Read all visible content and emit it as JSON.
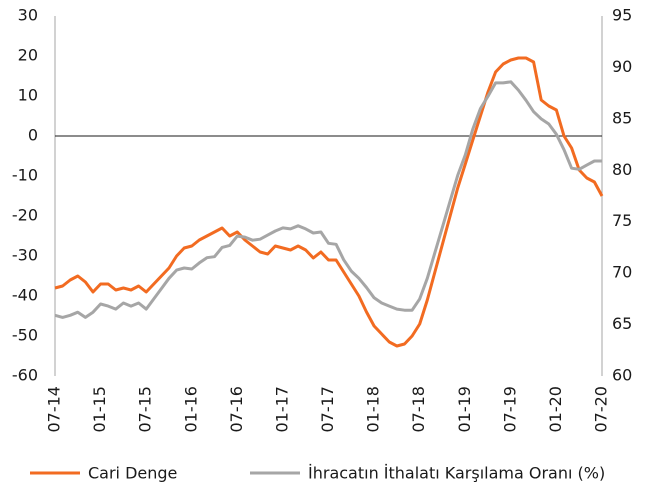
{
  "chart_data": {
    "type": "line",
    "categories": [
      "07-14",
      null,
      null,
      null,
      null,
      null,
      "01-15",
      null,
      null,
      null,
      null,
      null,
      "07-15",
      null,
      null,
      null,
      null,
      null,
      "01-16",
      null,
      null,
      null,
      null,
      null,
      "07-16",
      null,
      null,
      null,
      null,
      null,
      "01-17",
      null,
      null,
      null,
      null,
      null,
      "07-17",
      null,
      null,
      null,
      null,
      null,
      "01-18",
      null,
      null,
      null,
      null,
      null,
      "07-18",
      null,
      null,
      null,
      null,
      null,
      "01-19",
      null,
      null,
      null,
      null,
      null,
      "07-19",
      null,
      null,
      null,
      null,
      null,
      "01-20",
      null,
      null,
      null,
      null,
      null,
      "07-20"
    ],
    "series": [
      {
        "name": "Cari Denge",
        "color": "#f26b21",
        "values": [
          -38,
          -37.5,
          -36,
          -35,
          -36.5,
          -39,
          -37,
          -37,
          -38.5,
          -38,
          -38.5,
          -37.5,
          -39,
          -37,
          -35,
          -33,
          -30,
          -28,
          -27.5,
          -26,
          -25,
          -24,
          -23,
          -25,
          -24,
          -26,
          -27.5,
          -29,
          -29.5,
          -27.5,
          -28,
          -28.5,
          -27.5,
          -28.5,
          -30.5,
          -29,
          -31,
          -31,
          -34,
          -37,
          -40,
          -44,
          -47.5,
          -49.5,
          -51.5,
          -52.5,
          -52,
          -50,
          -47,
          -41,
          -34,
          -27,
          -20,
          -13,
          -7,
          -1,
          5,
          11,
          16,
          18,
          19,
          19.5,
          19.5,
          18.5,
          9,
          7.5,
          6.5,
          0,
          -3,
          -8.5,
          -10.5,
          -11.5,
          -15
        ]
      },
      {
        "name": "İhracatın İthalatı Karşılama Oranı (%)",
        "color": "#a6a6a6",
        "axis": "y2",
        "values": [
          65.9,
          65.7,
          65.9,
          66.2,
          65.7,
          66.2,
          67,
          66.8,
          66.5,
          67.1,
          66.8,
          67.1,
          66.5,
          67.5,
          68.5,
          69.5,
          70.3,
          70.5,
          70.4,
          71,
          71.5,
          71.6,
          72.5,
          72.7,
          73.6,
          73.5,
          73.2,
          73.3,
          73.7,
          74.1,
          74.4,
          74.3,
          74.6,
          74.3,
          73.9,
          74,
          72.9,
          72.8,
          71.3,
          70.2,
          69.5,
          68.6,
          67.6,
          67.1,
          66.8,
          66.5,
          66.4,
          66.4,
          67.5,
          69.5,
          72,
          74.5,
          77,
          79.5,
          81.5,
          84,
          86,
          87.2,
          88.5,
          88.5,
          88.6,
          87.8,
          86.8,
          85.7,
          85,
          84.5,
          83.5,
          82,
          80.2,
          80.1,
          80.5,
          80.9,
          80.9
        ]
      }
    ],
    "ylim": [
      -60,
      30
    ],
    "yticks": [
      -60,
      -50,
      -40,
      -30,
      -20,
      -10,
      0,
      10,
      20,
      30
    ],
    "y2lim": [
      60,
      95
    ],
    "y2ticks": [
      60,
      65,
      70,
      75,
      80,
      85,
      90,
      95
    ],
    "zero_line": true,
    "legend": "bottom"
  }
}
